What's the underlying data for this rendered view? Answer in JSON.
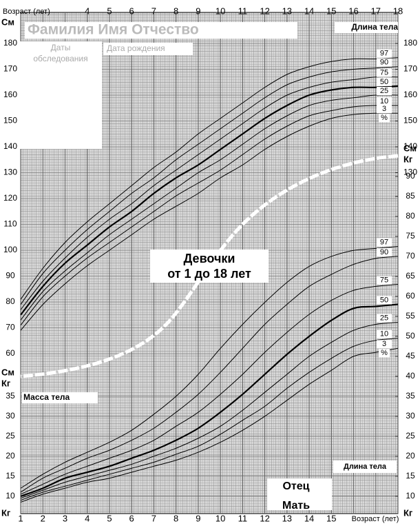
{
  "header": {
    "name_field": "Фамилия Имя Отчество",
    "exam_dates": [
      "Даты",
      "обследования"
    ],
    "birth_date": "Дата рождения"
  },
  "title": [
    "Девочки",
    "от 1 до 18 лет"
  ],
  "footer": {
    "body_length": "Длина тела",
    "father": "Отец",
    "mother": "Мать"
  },
  "chart_data": [
    {
      "type": "line",
      "title": "Длина тела",
      "unit": "См",
      "x_label": "Возраст (лет)",
      "x": [
        1,
        2,
        3,
        4,
        5,
        6,
        7,
        8,
        9,
        10,
        11,
        12,
        13,
        14,
        15,
        16,
        17,
        18
      ],
      "xlim": [
        1,
        18
      ],
      "xticks": [
        4,
        5,
        6,
        7,
        8,
        9,
        10,
        11,
        12,
        13,
        14,
        15,
        16,
        17,
        18
      ],
      "ylim": [
        0,
        192
      ],
      "yticks": [
        60,
        70,
        80,
        90,
        100,
        110,
        120,
        130,
        140,
        150,
        160,
        170,
        180
      ],
      "y2ticks": [
        130,
        140,
        150,
        160,
        170,
        180
      ],
      "percent_label": "%",
      "grid": true,
      "series": [
        {
          "name": "97",
          "color": "#000",
          "line_width": 1,
          "values": [
            81,
            93,
            103,
            111,
            118,
            125,
            132,
            138,
            145,
            151,
            157,
            163,
            168,
            171,
            173,
            174,
            174,
            174.5
          ]
        },
        {
          "name": "90",
          "color": "#000",
          "line_width": 1,
          "values": [
            79,
            91,
            100,
            108,
            115,
            122,
            128,
            135,
            141,
            147,
            153,
            159,
            164,
            167,
            169,
            170,
            170.5,
            171
          ]
        },
        {
          "name": "75",
          "color": "#000",
          "line_width": 1,
          "values": [
            77,
            88,
            97,
            105,
            112,
            118,
            125,
            131,
            137,
            143,
            149,
            155,
            160,
            163,
            165,
            166,
            167,
            167
          ]
        },
        {
          "name": "50",
          "color": "#000",
          "line_width": 2.2,
          "values": [
            75,
            86,
            95,
            102,
            109,
            115,
            122,
            128,
            133,
            139,
            145,
            151,
            156,
            160,
            162,
            163,
            163,
            163.5
          ]
        },
        {
          "name": "25",
          "color": "#000",
          "line_width": 1,
          "values": [
            73,
            84,
            92,
            99,
            106,
            112,
            118,
            124,
            130,
            135,
            141,
            147,
            152,
            156,
            158,
            159,
            160,
            160
          ]
        },
        {
          "name": "10",
          "color": "#000",
          "line_width": 1,
          "values": [
            71,
            82,
            90,
            97,
            103,
            109,
            115,
            121,
            126,
            131,
            137,
            143,
            148,
            152,
            154,
            155.5,
            156,
            156
          ]
        },
        {
          "name": "3",
          "color": "#000",
          "line_width": 1,
          "values": [
            69,
            79,
            87,
            94,
            100,
            106,
            112,
            117,
            122,
            128,
            133,
            139,
            144,
            148,
            151,
            152.5,
            153,
            153
          ]
        }
      ]
    },
    {
      "type": "line",
      "title": "Масса тела",
      "unit": "Кг",
      "x_label": "Возраст (лет)",
      "x": [
        1,
        2,
        3,
        4,
        5,
        6,
        7,
        8,
        9,
        10,
        11,
        12,
        13,
        14,
        15,
        16,
        17,
        18
      ],
      "xlim": [
        1,
        18
      ],
      "xticks": [
        1,
        2,
        3,
        4,
        5,
        6,
        7,
        8,
        9,
        10,
        11,
        12,
        13,
        14,
        15
      ],
      "ylim": [
        6,
        100
      ],
      "yticks": [
        10,
        15,
        20,
        25,
        30,
        35
      ],
      "y2ticks": [
        10,
        15,
        20,
        25,
        30,
        35,
        40,
        45,
        50,
        55,
        60,
        65,
        70,
        75,
        80,
        85,
        90
      ],
      "percent_label": "%",
      "grid": true,
      "series": [
        {
          "name": "97",
          "color": "#000",
          "line_width": 1,
          "values": [
            12,
            15.5,
            18.5,
            21,
            23.5,
            26.5,
            30.5,
            35,
            40.5,
            47,
            53,
            58.5,
            63.5,
            67.5,
            70,
            71.5,
            72,
            72.5
          ]
        },
        {
          "name": "90",
          "color": "#000",
          "line_width": 1,
          "values": [
            11,
            14.5,
            17,
            19.5,
            21.5,
            24,
            27,
            31,
            35.5,
            41,
            47,
            53,
            58,
            62.5,
            65.5,
            68,
            69.5,
            70
          ]
        },
        {
          "name": "75",
          "color": "#000",
          "line_width": 1,
          "values": [
            10.5,
            13,
            15.5,
            17.5,
            19.5,
            21.5,
            24,
            27.5,
            31,
            35.5,
            40.5,
            46,
            51,
            55.5,
            59,
            61.5,
            62.5,
            63
          ]
        },
        {
          "name": "50",
          "color": "#000",
          "line_width": 2.2,
          "values": [
            10,
            12,
            14.5,
            16,
            17.5,
            19.5,
            21.5,
            24,
            27,
            31,
            35.5,
            40.5,
            45.5,
            50,
            54,
            57,
            57.5,
            58
          ]
        },
        {
          "name": "25",
          "color": "#000",
          "line_width": 1,
          "values": [
            9.5,
            11.5,
            13.5,
            15,
            16.5,
            18,
            20,
            22,
            24.5,
            27.5,
            31.5,
            36,
            40.5,
            45,
            48.5,
            51.5,
            53,
            53.5
          ]
        },
        {
          "name": "10",
          "color": "#000",
          "line_width": 1,
          "values": [
            9,
            11,
            12.5,
            14,
            15.5,
            17,
            18.5,
            20.5,
            22.5,
            25.5,
            29,
            32.5,
            37,
            41,
            44.5,
            47.5,
            49,
            49.5
          ]
        },
        {
          "name": "3",
          "color": "#000",
          "line_width": 1,
          "values": [
            8.5,
            10.5,
            12,
            13.5,
            14.5,
            16,
            17.5,
            19,
            21,
            23.5,
            26.5,
            30,
            34,
            38,
            41.5,
            45,
            46,
            47
          ]
        }
      ]
    }
  ]
}
